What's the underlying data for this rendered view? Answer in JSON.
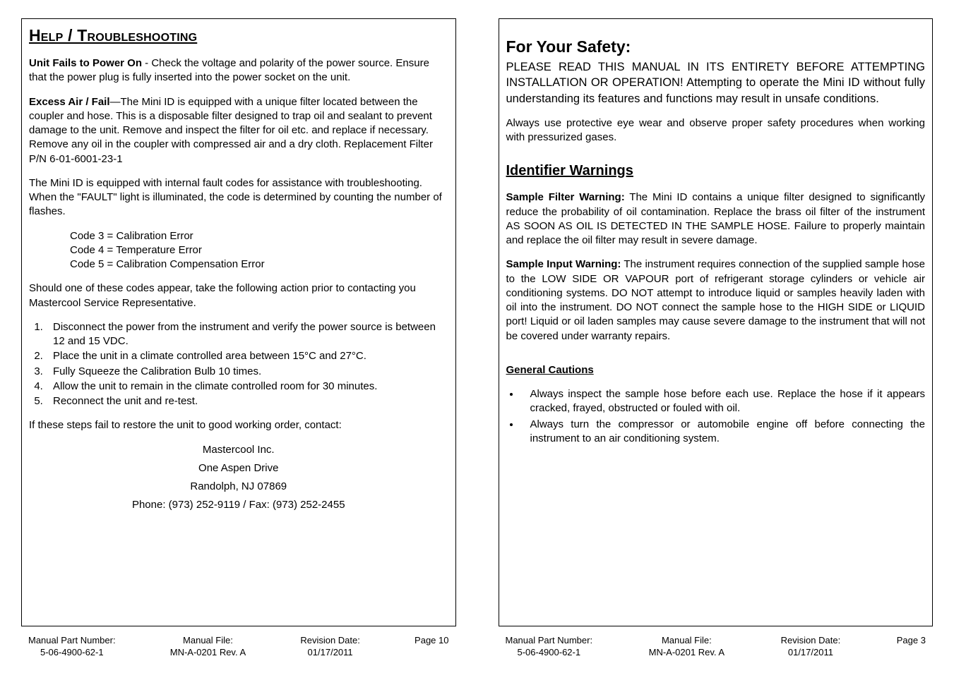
{
  "left": {
    "heading": "Help / Troubleshooting",
    "p1_bold": "Unit Fails to Power On",
    "p1_rest": " -  Check the voltage and polarity of the power source.  Ensure that the power plug is fully inserted into the power socket on the unit.",
    "p2_bold": "Excess Air / Fail",
    "p2_rest": "—The Mini ID is equipped with a unique filter located between the coupler and hose.  This is a disposable filter designed to trap oil and sealant to prevent damage to the unit.  Remove and inspect the filter for oil etc. and replace if necessary.  Remove any oil in the coupler with compressed air and a dry cloth. Replacement Filter P/N 6-01-6001-23-1",
    "p3": "The Mini ID is equipped with internal fault codes for assistance with troubleshooting.  When the \"FAULT\" light is illuminated, the code is determined by counting the number of flashes.",
    "codes": [
      "Code 3 = Calibration Error",
      "Code 4 = Temperature Error",
      "Code 5 = Calibration Compensation Error"
    ],
    "p4": "Should one of these codes appear, take the following action prior to contacting you Mastercool Service Representative.",
    "steps": [
      "Disconnect the power from the instrument and verify the power source is between 12 and 15 VDC.",
      "Place the unit in a climate controlled area between 15°C and 27°C.",
      "Fully Squeeze the Calibration Bulb 10 times.",
      "Allow the unit to remain in the climate controlled room for 30 minutes.",
      "Reconnect the unit and re-test."
    ],
    "p5": "If these steps fail to restore the unit to good working order, contact:",
    "contact": [
      "Mastercool Inc.",
      "One Aspen Drive",
      "Randolph, NJ 07869",
      "Phone: (973) 252-9119 / Fax: (973) 252-2455"
    ],
    "footer": {
      "part_label": "Manual Part Number:",
      "part_value": "5-06-4900-62-1",
      "file_label": "Manual File:",
      "file_value": "MN-A-0201 Rev. A",
      "date_label": "Revision Date:",
      "date_value": "01/17/2011",
      "page": "Page 10"
    }
  },
  "right": {
    "heading_safety": "For Your Safety:",
    "p1": "PLEASE READ THIS MANUAL IN ITS ENTIRETY BEFORE ATTEMPTING INSTALLATION OR OPERATION!  Attempting to operate the Mini ID without fully understanding its features and functions may result in unsafe conditions.",
    "p2": "Always use protective eye wear and observe proper safety procedures when working with pressurized gases.",
    "heading_warnings": "Identifier Warnings",
    "w1_bold": "Sample Filter Warning:",
    "w1_rest": "  The Mini ID contains a unique filter designed to significantly reduce the probability of oil contamination.  Replace the brass oil filter of the instrument AS SOON AS OIL IS DETECTED IN THE SAMPLE HOSE.  Failure to properly maintain and replace the oil filter may result in severe damage.",
    "w2_bold": "Sample Input Warning:",
    "w2_rest": "  The instrument requires connection of the supplied sample hose to the LOW SIDE OR VAPOUR port of refrigerant storage cylinders or vehicle air conditioning systems.  DO NOT attempt to introduce liquid or samples heavily laden with oil into the instrument.  DO NOT connect the sample hose to the HIGH SIDE or LIQUID port!  Liquid or oil laden samples may cause severe damage to the instrument that will not be covered under warranty repairs.",
    "heading_cautions": "General Cautions",
    "cautions": [
      "Always inspect the sample hose before each use.  Replace the hose if it appears cracked, frayed, obstructed or fouled with oil.",
      "Always turn the compressor or automobile engine off before connecting the instrument to an air conditioning system."
    ],
    "footer": {
      "part_label": "Manual Part Number:",
      "part_value": "5-06-4900-62-1",
      "file_label": "Manual File:",
      "file_value": "MN-A-0201 Rev. A",
      "date_label": "Revision Date:",
      "date_value": "01/17/2011",
      "page": "Page 3"
    }
  }
}
